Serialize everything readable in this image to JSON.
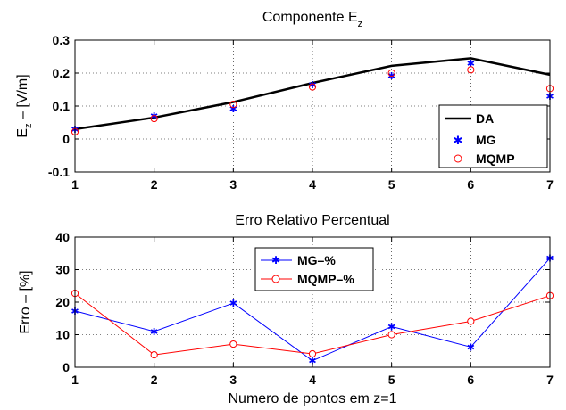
{
  "chart_data": [
    {
      "type": "line",
      "title": "Componente E",
      "title_sub": "z",
      "ylabel": "E",
      "ylabel_sub": "z",
      "ylabel_rest": " – [V/m]",
      "xlim": [
        1,
        7
      ],
      "ylim": [
        -0.1,
        0.3
      ],
      "xticks": [
        "1",
        "2",
        "3",
        "4",
        "5",
        "6",
        "7"
      ],
      "yticks": [
        "-0.1",
        "0",
        "0.1",
        "0.2",
        "0.3"
      ],
      "ytick_values": [
        -0.1,
        0,
        0.1,
        0.2,
        0.3
      ],
      "grid": true,
      "legend_position": "bottom-right",
      "x": [
        1,
        2,
        3,
        4,
        5,
        6,
        7
      ],
      "series": [
        {
          "name": "DA",
          "style": "line",
          "color": "#000000",
          "values": [
            0.03,
            0.065,
            0.112,
            0.17,
            0.222,
            0.245,
            0.195
          ]
        },
        {
          "name": "MG",
          "style": "asterisk",
          "color": "#0000ff",
          "values": [
            0.03,
            0.07,
            0.092,
            0.165,
            0.192,
            0.23,
            0.13
          ]
        },
        {
          "name": "MQMP",
          "style": "circle",
          "color": "#ff0000",
          "values": [
            0.022,
            0.062,
            0.105,
            0.158,
            0.2,
            0.21,
            0.153
          ]
        }
      ]
    },
    {
      "type": "line",
      "title": "Erro Relativo Percentual",
      "xlabel": "Numero de pontos em z=1",
      "ylabel": "Erro – [%]",
      "xlim": [
        1,
        7
      ],
      "ylim": [
        0,
        40
      ],
      "xticks": [
        "1",
        "2",
        "3",
        "4",
        "5",
        "6",
        "7"
      ],
      "yticks": [
        "0",
        "10",
        "20",
        "30",
        "40"
      ],
      "ytick_values": [
        0,
        10,
        20,
        30,
        40
      ],
      "grid": true,
      "legend_position": "top-left",
      "x": [
        1,
        2,
        3,
        4,
        5,
        6,
        7
      ],
      "series": [
        {
          "name": "MG–%",
          "style": "line-asterisk",
          "color": "#0000ff",
          "values": [
            17.3,
            11,
            19.7,
            2,
            12.5,
            6.2,
            33.5
          ]
        },
        {
          "name": "MQMP–%",
          "style": "line-circle",
          "color": "#ff0000",
          "values": [
            22.7,
            3.8,
            7.1,
            4.1,
            10,
            14.1,
            22
          ]
        }
      ]
    }
  ]
}
